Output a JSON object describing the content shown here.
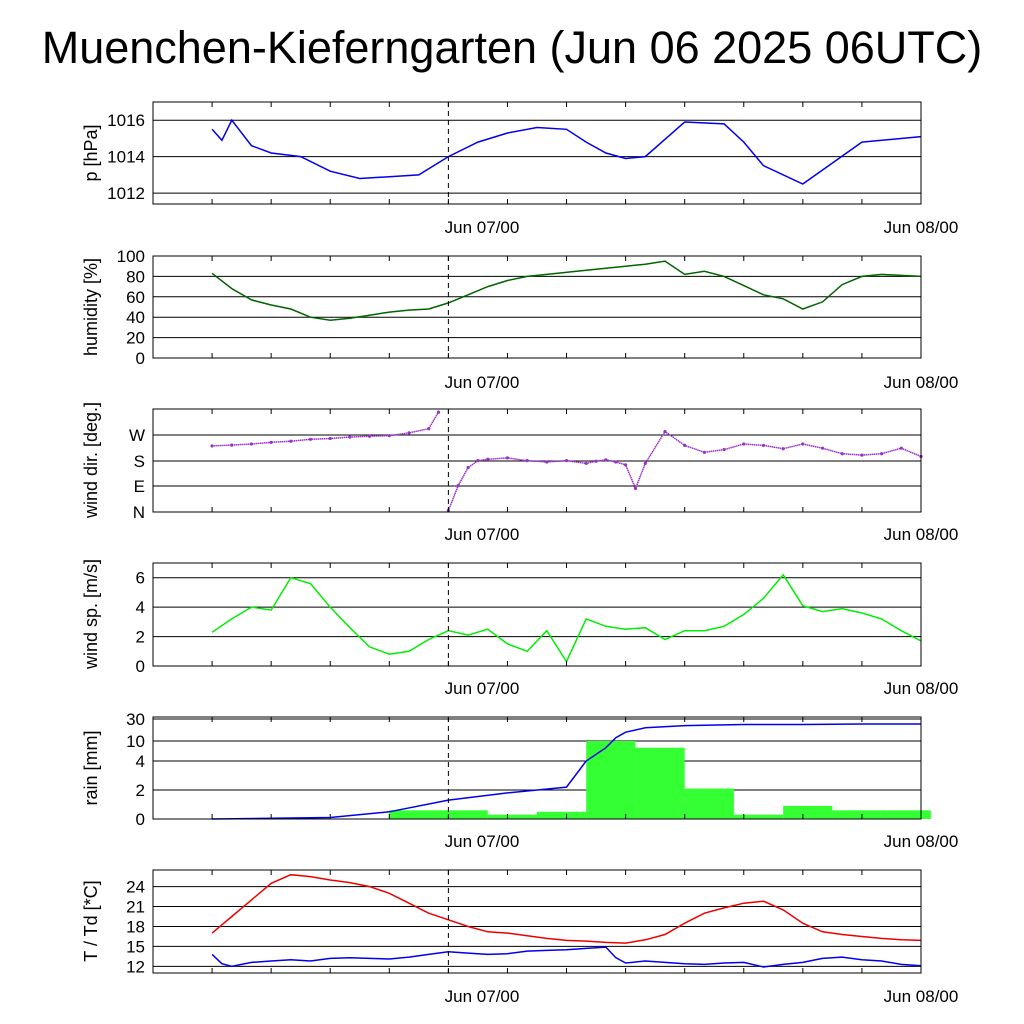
{
  "title": "Muenchen-Kieferngarten (Jun 06 2025 06UTC)",
  "chart_data": [
    {
      "type": "line",
      "ylabel": "p [hPa]",
      "x_tick_labels": [
        "Jun 07/00",
        "Jun 08/00"
      ],
      "ylim": [
        1011.4,
        1017.0
      ],
      "yticks": [
        1016,
        1014,
        1012
      ],
      "series": [
        {
          "color": "#0000ee",
          "x": [
            6,
            7,
            8,
            10,
            12,
            15,
            18,
            21,
            24,
            27,
            30,
            33,
            36,
            39,
            42,
            44,
            46,
            48,
            50,
            54,
            58,
            60,
            62,
            66,
            72,
            78
          ],
          "values": [
            1015.5,
            1014.9,
            1016.0,
            1014.6,
            1014.2,
            1014.0,
            1013.2,
            1012.8,
            1012.9,
            1013.0,
            1014.0,
            1014.8,
            1015.3,
            1015.6,
            1015.5,
            1014.8,
            1014.2,
            1013.9,
            1014.0,
            1015.9,
            1015.8,
            1014.8,
            1013.5,
            1012.5,
            1014.8,
            1015.1
          ]
        }
      ]
    },
    {
      "type": "line",
      "ylabel": "humidity [%]",
      "x_tick_labels": [
        "Jun 07/00",
        "Jun 08/00"
      ],
      "ylim": [
        0,
        100
      ],
      "yticks": [
        100,
        80,
        60,
        40,
        20,
        0
      ],
      "series": [
        {
          "color": "#006400",
          "x": [
            6,
            8,
            10,
            12,
            14,
            16,
            18,
            20,
            22,
            24,
            26,
            28,
            30,
            32,
            34,
            36,
            38,
            40,
            44,
            48,
            50,
            52,
            54,
            56,
            58,
            60,
            62,
            64,
            66,
            68,
            70,
            72,
            74,
            76,
            78
          ],
          "values": [
            83,
            68,
            57,
            52,
            48,
            40,
            37,
            39,
            42,
            45,
            47,
            48,
            54,
            62,
            70,
            76,
            80,
            82,
            86,
            90,
            92,
            95,
            82,
            85,
            80,
            71,
            62,
            58,
            48,
            55,
            72,
            80,
            82,
            81,
            80
          ]
        }
      ]
    },
    {
      "type": "scatter",
      "ylabel": "wind dir. [deg.]",
      "x_tick_labels": [
        "Jun 07/00",
        "Jun 08/00"
      ],
      "yticks": [
        "W",
        "S",
        "E",
        "N"
      ],
      "ylim": [
        0,
        360
      ],
      "series": [
        {
          "color": "#9932cc",
          "x": [
            6,
            8,
            10,
            12,
            14,
            16,
            18,
            20,
            22,
            24,
            26,
            28,
            29,
            30,
            31,
            32,
            33,
            34,
            36,
            38,
            40,
            42,
            44,
            45,
            46,
            47,
            48,
            49,
            50,
            52,
            54,
            56,
            58,
            60,
            62,
            64,
            66,
            68,
            70,
            72,
            74,
            76,
            78
          ],
          "values": [
            238,
            241,
            245,
            251,
            255,
            262,
            265,
            270,
            273,
            275,
            285,
            300,
            360,
            5,
            95,
            160,
            185,
            190,
            195,
            185,
            180,
            185,
            175,
            183,
            188,
            180,
            170,
            85,
            175,
            290,
            240,
            215,
            225,
            245,
            240,
            228,
            245,
            230,
            210,
            205,
            210,
            230,
            200
          ]
        }
      ]
    },
    {
      "type": "line",
      "ylabel": "wind sp. [m/s]",
      "x_tick_labels": [
        "Jun 07/00",
        "Jun 08/00"
      ],
      "ylim": [
        0,
        7
      ],
      "yticks": [
        6.0,
        4.0,
        2.0,
        0.0
      ],
      "series": [
        {
          "color": "#00ee00",
          "x": [
            6,
            8,
            10,
            12,
            14,
            16,
            18,
            20,
            22,
            24,
            26,
            28,
            30,
            32,
            34,
            36,
            38,
            40,
            42,
            44,
            46,
            48,
            50,
            52,
            54,
            56,
            58,
            60,
            62,
            64,
            66,
            68,
            70,
            72,
            74,
            76,
            78
          ],
          "values": [
            2.3,
            3.2,
            4.0,
            3.8,
            6.0,
            5.6,
            4.0,
            2.6,
            1.3,
            0.8,
            1.0,
            1.8,
            2.4,
            2.1,
            2.5,
            1.5,
            1.0,
            2.4,
            0.3,
            3.2,
            2.7,
            2.5,
            2.6,
            1.8,
            2.4,
            2.4,
            2.7,
            3.5,
            4.6,
            6.2,
            4.1,
            3.7,
            3.9,
            3.6,
            3.2,
            2.4,
            1.7
          ]
        }
      ]
    },
    {
      "type": "bar",
      "ylabel": "rain [mm]",
      "x_tick_labels": [
        "Jun 07/00",
        "Jun 08/00"
      ],
      "yticks": [
        30,
        10,
        4,
        2,
        0
      ],
      "ylim": [
        0,
        30
      ],
      "bars": {
        "color": "#33ff33",
        "x_start": [
          24,
          29,
          34,
          39,
          44,
          49,
          54,
          59,
          64,
          69,
          74
        ],
        "values": [
          0.6,
          0.6,
          0.3,
          0.5,
          10,
          8,
          2.1,
          0.3,
          0.9,
          0.6,
          0.6
        ]
      },
      "series": [
        {
          "color": "#0000ee",
          "x": [
            6,
            18,
            24,
            30,
            36,
            42,
            44,
            46,
            47,
            48,
            50,
            54,
            60,
            66,
            72,
            78
          ],
          "values": [
            0,
            0.1,
            0.5,
            1.3,
            1.8,
            2.2,
            4,
            8,
            13,
            18,
            22,
            24,
            25,
            25,
            25.5,
            25.5
          ]
        }
      ]
    },
    {
      "type": "line",
      "ylabel": "T / Td [*C]",
      "x_tick_labels": [
        "Jun 07/00",
        "Jun 08/00"
      ],
      "ylim": [
        11.0,
        26.5
      ],
      "yticks": [
        24,
        21,
        18,
        15,
        12
      ],
      "series": [
        {
          "color": "#ee0000",
          "x": [
            6,
            8,
            10,
            12,
            14,
            16,
            18,
            20,
            22,
            24,
            26,
            28,
            30,
            32,
            34,
            36,
            38,
            40,
            42,
            44,
            46,
            48,
            50,
            52,
            54,
            56,
            58,
            60,
            62,
            64,
            66,
            68,
            70,
            72,
            74,
            76,
            78
          ],
          "values": [
            17.0,
            19.5,
            22.0,
            24.5,
            25.8,
            25.5,
            25.0,
            24.6,
            24.0,
            23.0,
            21.5,
            20.0,
            19.0,
            18.0,
            17.2,
            17.0,
            16.6,
            16.2,
            15.9,
            15.8,
            15.6,
            15.5,
            16.0,
            16.8,
            18.5,
            20.0,
            20.8,
            21.5,
            21.8,
            20.5,
            18.5,
            17.2,
            16.8,
            16.5,
            16.2,
            16.0,
            15.9
          ]
        },
        {
          "color": "#0000ee",
          "x": [
            6,
            7,
            8,
            10,
            12,
            14,
            16,
            18,
            20,
            22,
            24,
            26,
            28,
            30,
            32,
            34,
            36,
            38,
            40,
            42,
            44,
            46,
            47,
            48,
            50,
            52,
            54,
            56,
            58,
            60,
            62,
            64,
            66,
            68,
            70,
            72,
            74,
            76,
            78
          ],
          "values": [
            13.8,
            12.4,
            12.0,
            12.6,
            12.8,
            13.0,
            12.8,
            13.2,
            13.3,
            13.2,
            13.1,
            13.4,
            13.8,
            14.2,
            14.0,
            13.8,
            13.9,
            14.3,
            14.4,
            14.5,
            14.7,
            14.9,
            13.3,
            12.5,
            12.8,
            12.6,
            12.4,
            12.3,
            12.5,
            12.6,
            11.9,
            12.3,
            12.6,
            13.2,
            13.4,
            13.0,
            12.8,
            12.3,
            12.1
          ]
        }
      ]
    }
  ]
}
